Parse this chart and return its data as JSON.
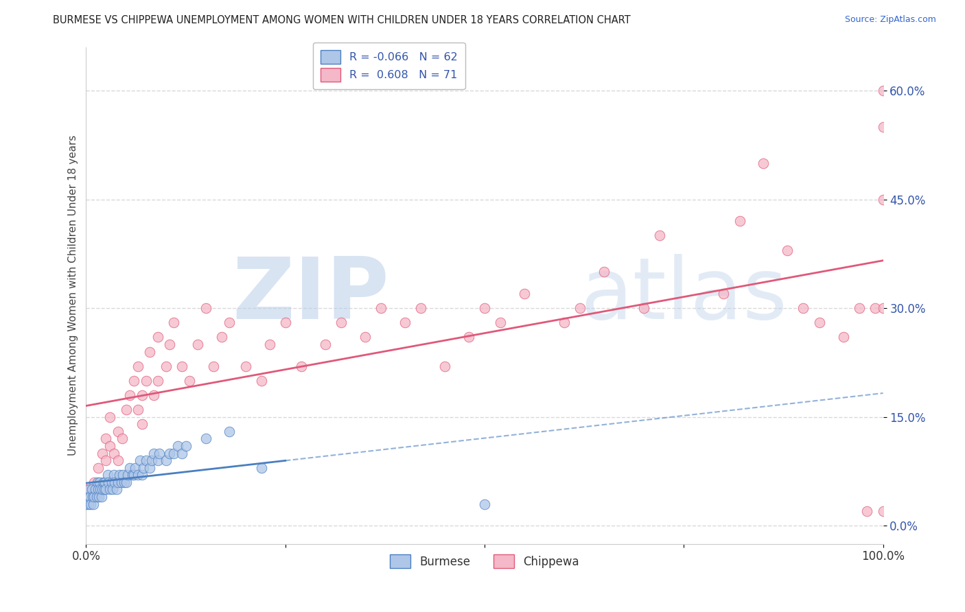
{
  "title": "BURMESE VS CHIPPEWA UNEMPLOYMENT AMONG WOMEN WITH CHILDREN UNDER 18 YEARS CORRELATION CHART",
  "source": "Source: ZipAtlas.com",
  "ylabel": "Unemployment Among Women with Children Under 18 years",
  "burmese_R": -0.066,
  "burmese_N": 62,
  "chippewa_R": 0.608,
  "chippewa_N": 71,
  "burmese_color": "#aec6e8",
  "chippewa_color": "#f4b8c8",
  "burmese_line_color": "#4a7fc1",
  "chippewa_line_color": "#e05878",
  "burmese_x": [
    0.0,
    0.002,
    0.003,
    0.004,
    0.005,
    0.006,
    0.007,
    0.008,
    0.009,
    0.01,
    0.012,
    0.013,
    0.014,
    0.015,
    0.016,
    0.017,
    0.018,
    0.019,
    0.02,
    0.022,
    0.023,
    0.024,
    0.025,
    0.027,
    0.028,
    0.03,
    0.032,
    0.033,
    0.035,
    0.036,
    0.038,
    0.04,
    0.042,
    0.044,
    0.046,
    0.048,
    0.05,
    0.052,
    0.055,
    0.058,
    0.06,
    0.062,
    0.065,
    0.068,
    0.07,
    0.072,
    0.075,
    0.08,
    0.082,
    0.085,
    0.09,
    0.092,
    0.1,
    0.105,
    0.11,
    0.115,
    0.12,
    0.125,
    0.15,
    0.18,
    0.22,
    0.5
  ],
  "burmese_y": [
    0.03,
    0.04,
    0.03,
    0.05,
    0.04,
    0.03,
    0.05,
    0.04,
    0.03,
    0.04,
    0.05,
    0.04,
    0.06,
    0.05,
    0.04,
    0.06,
    0.05,
    0.04,
    0.05,
    0.06,
    0.05,
    0.06,
    0.05,
    0.07,
    0.06,
    0.05,
    0.06,
    0.05,
    0.07,
    0.06,
    0.05,
    0.06,
    0.07,
    0.06,
    0.07,
    0.06,
    0.06,
    0.07,
    0.08,
    0.07,
    0.07,
    0.08,
    0.07,
    0.09,
    0.07,
    0.08,
    0.09,
    0.08,
    0.09,
    0.1,
    0.09,
    0.1,
    0.09,
    0.1,
    0.1,
    0.11,
    0.1,
    0.11,
    0.12,
    0.13,
    0.08,
    0.03
  ],
  "chippewa_x": [
    0.0,
    0.005,
    0.01,
    0.015,
    0.02,
    0.025,
    0.025,
    0.03,
    0.03,
    0.035,
    0.04,
    0.04,
    0.045,
    0.05,
    0.055,
    0.06,
    0.065,
    0.065,
    0.07,
    0.07,
    0.075,
    0.08,
    0.085,
    0.09,
    0.09,
    0.1,
    0.105,
    0.11,
    0.12,
    0.13,
    0.14,
    0.15,
    0.16,
    0.17,
    0.18,
    0.2,
    0.22,
    0.23,
    0.25,
    0.27,
    0.3,
    0.32,
    0.35,
    0.37,
    0.4,
    0.42,
    0.45,
    0.48,
    0.5,
    0.52,
    0.55,
    0.6,
    0.62,
    0.65,
    0.7,
    0.72,
    0.8,
    0.82,
    0.85,
    0.88,
    0.9,
    0.92,
    0.95,
    0.97,
    0.98,
    0.99,
    1.0,
    1.0,
    1.0,
    1.0,
    1.0
  ],
  "chippewa_y": [
    0.05,
    0.04,
    0.06,
    0.08,
    0.1,
    0.09,
    0.12,
    0.11,
    0.15,
    0.1,
    0.09,
    0.13,
    0.12,
    0.16,
    0.18,
    0.2,
    0.16,
    0.22,
    0.18,
    0.14,
    0.2,
    0.24,
    0.18,
    0.2,
    0.26,
    0.22,
    0.25,
    0.28,
    0.22,
    0.2,
    0.25,
    0.3,
    0.22,
    0.26,
    0.28,
    0.22,
    0.2,
    0.25,
    0.28,
    0.22,
    0.25,
    0.28,
    0.26,
    0.3,
    0.28,
    0.3,
    0.22,
    0.26,
    0.3,
    0.28,
    0.32,
    0.28,
    0.3,
    0.35,
    0.3,
    0.4,
    0.32,
    0.42,
    0.5,
    0.38,
    0.3,
    0.28,
    0.26,
    0.3,
    0.02,
    0.3,
    0.6,
    0.3,
    0.45,
    0.55,
    0.02
  ],
  "xlim": [
    0.0,
    1.0
  ],
  "ylim": [
    -0.025,
    0.66
  ],
  "yticks": [
    0.0,
    0.15,
    0.3,
    0.45,
    0.6
  ],
  "ytick_labels": [
    "0.0%",
    "15.0%",
    "30.0%",
    "45.0%",
    "60.0%"
  ],
  "xticks": [
    0.0,
    0.25,
    0.5,
    0.75,
    1.0
  ],
  "xtick_labels": [
    "0.0%",
    "",
    "",
    "",
    "100.0%"
  ],
  "watermark_zip": "ZIP",
  "watermark_atlas": "atlas",
  "watermark_color_zip": "#b8cfe8",
  "watermark_color_atlas": "#b8cfe8",
  "background_color": "#ffffff",
  "grid_color": "#d8d8d8",
  "tick_color": "#3355aa"
}
